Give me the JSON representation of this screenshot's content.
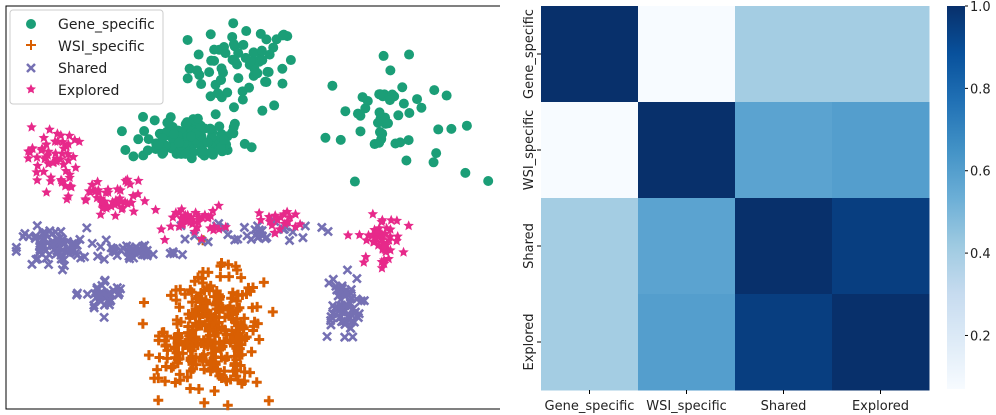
{
  "chart_data": [
    {
      "type": "scatter",
      "title": "",
      "xlabel": "",
      "ylabel": "",
      "axes_visible": false,
      "legend": {
        "placement": "top-left",
        "entries": [
          {
            "label": "Gene_specific",
            "color": "#1b9e77",
            "marker": "circle"
          },
          {
            "label": "WSI_specific",
            "color": "#d95f02",
            "marker": "plus"
          },
          {
            "label": "Shared",
            "color": "#7570b3",
            "marker": "x"
          },
          {
            "label": "Explored",
            "color": "#e7298a",
            "marker": "star"
          }
        ]
      },
      "xlim": [
        0,
        100
      ],
      "ylim": [
        0,
        100
      ],
      "series": [
        {
          "name": "Gene_specific",
          "color": "#1b9e77",
          "marker": "circle",
          "clusters": [
            {
              "cx": 48,
              "cy": 86,
              "sx": 5.5,
              "sy": 5.5,
              "n": 70
            },
            {
              "cx": 37,
              "cy": 67,
              "sx": 6,
              "sy": 2.5,
              "n": 90
            },
            {
              "cx": 38,
              "cy": 71,
              "sx": 3,
              "sy": 2,
              "n": 25
            },
            {
              "cx": 77,
              "cy": 73,
              "sx": 6,
              "sy": 7,
              "n": 50
            }
          ],
          "outliers": [
            [
              98,
              57
            ]
          ]
        },
        {
          "name": "WSI_specific",
          "color": "#d95f02",
          "marker": "plus",
          "clusters": [
            {
              "cx": 42,
              "cy": 19,
              "sx": 5,
              "sy": 7,
              "n": 260
            },
            {
              "cx": 34,
              "cy": 13,
              "sx": 2.5,
              "sy": 3,
              "n": 25
            },
            {
              "cx": 46,
              "cy": 10,
              "sx": 2,
              "sy": 2.5,
              "n": 15
            }
          ],
          "outliers": []
        },
        {
          "name": "Shared",
          "color": "#7570b3",
          "marker": "x",
          "clusters": [
            {
              "cx": 9,
              "cy": 40,
              "sx": 3.5,
              "sy": 2.5,
              "n": 70
            },
            {
              "cx": 26,
              "cy": 39,
              "sx": 4.5,
              "sy": 1.2,
              "n": 45
            },
            {
              "cx": 20,
              "cy": 28,
              "sx": 2,
              "sy": 2,
              "n": 35
            },
            {
              "cx": 51,
              "cy": 44,
              "sx": 6,
              "sy": 1.5,
              "n": 35
            },
            {
              "cx": 68,
              "cy": 25,
              "sx": 2,
              "sy": 4,
              "n": 60
            }
          ],
          "outliers": [
            [
              14,
              28
            ]
          ]
        },
        {
          "name": "Explored",
          "color": "#e7298a",
          "marker": "star",
          "clusters": [
            {
              "cx": 9,
              "cy": 63,
              "sx": 2.5,
              "sy": 4,
              "n": 55
            },
            {
              "cx": 21,
              "cy": 52,
              "sx": 4,
              "sy": 2.5,
              "n": 55
            },
            {
              "cx": 38,
              "cy": 47,
              "sx": 3,
              "sy": 1.8,
              "n": 40
            },
            {
              "cx": 56,
              "cy": 47,
              "sx": 2.5,
              "sy": 1.5,
              "n": 20
            },
            {
              "cx": 76,
              "cy": 42,
              "sx": 2.2,
              "sy": 3,
              "n": 50
            }
          ],
          "outliers": [
            [
              32,
              42
            ],
            [
              24,
              57
            ]
          ]
        }
      ]
    },
    {
      "type": "heatmap",
      "title": "",
      "xlabel": "",
      "ylabel": "",
      "categories_x": [
        "Gene_specific",
        "WSI_specific",
        "Shared",
        "Explored"
      ],
      "categories_y": [
        "Gene_specific",
        "WSI_specific",
        "Shared",
        "Explored"
      ],
      "values": [
        [
          1.0,
          0.07,
          0.4,
          0.4
        ],
        [
          0.07,
          1.0,
          0.58,
          0.6
        ],
        [
          0.4,
          0.58,
          1.0,
          0.95
        ],
        [
          0.4,
          0.6,
          0.95,
          1.0
        ]
      ],
      "colormap": "Blues",
      "colorbar": {
        "range": [
          0.07,
          1.0
        ],
        "ticks": [
          "0.2",
          "0.4",
          "0.6",
          "0.8",
          "1.0"
        ],
        "tick_values": [
          0.2,
          0.4,
          0.6,
          0.8,
          1.0
        ]
      }
    }
  ]
}
